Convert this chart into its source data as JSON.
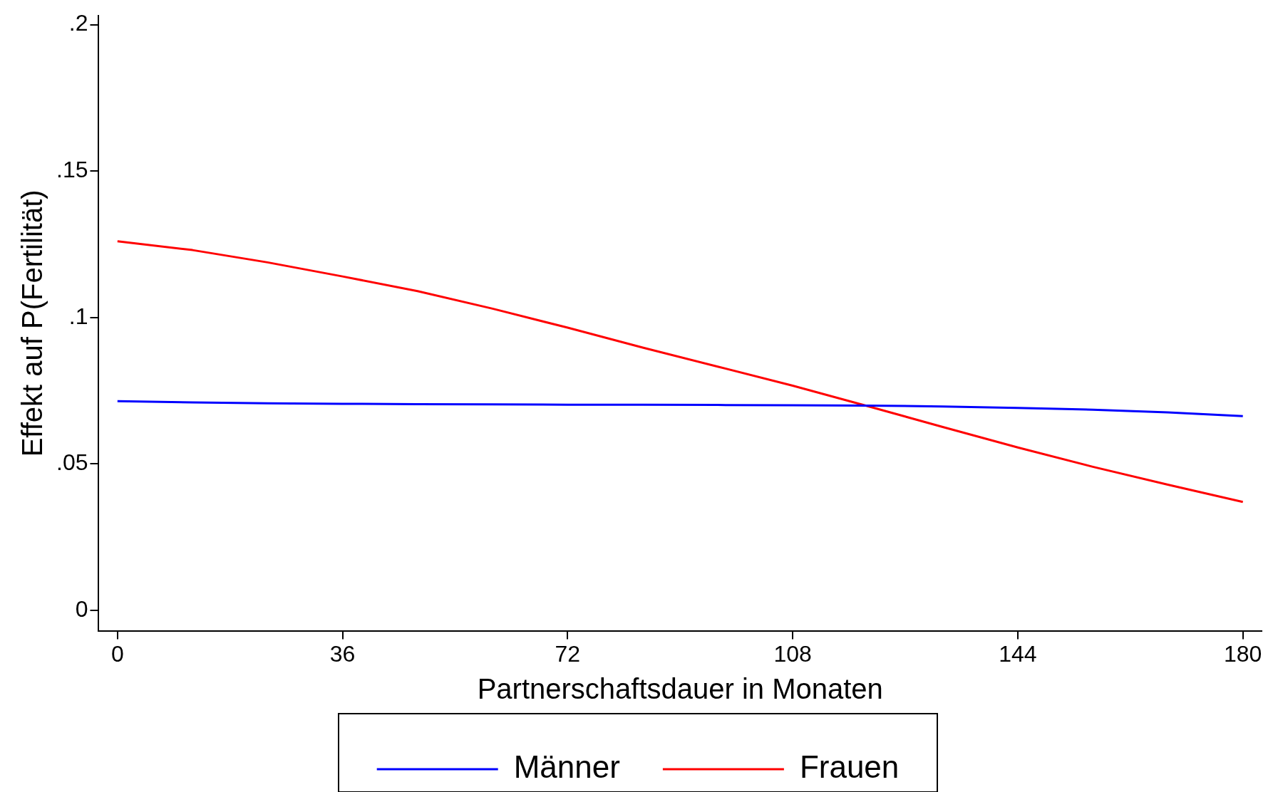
{
  "chart_data": {
    "type": "line",
    "xlabel": "Partnerschaftsdauer in Monaten",
    "ylabel": "Effekt auf P(Fertilität)",
    "x": [
      0,
      12,
      24,
      36,
      48,
      60,
      72,
      84,
      96,
      108,
      120,
      132,
      144,
      156,
      168,
      180
    ],
    "series": [
      {
        "name": "Männer",
        "color": "#0000ff",
        "values": [
          0.0714,
          0.071,
          0.0707,
          0.0705,
          0.0704,
          0.0703,
          0.0702,
          0.0702,
          0.0701,
          0.07,
          0.0699,
          0.0696,
          0.0691,
          0.0685,
          0.0676,
          0.0663
        ]
      },
      {
        "name": "Frauen",
        "color": "#ff0000",
        "values": [
          0.126,
          0.123,
          0.1188,
          0.114,
          0.109,
          0.103,
          0.0965,
          0.0897,
          0.0832,
          0.0767,
          0.0697,
          0.0626,
          0.0556,
          0.049,
          0.0429,
          0.037
        ]
      }
    ],
    "xlim": [
      -3,
      183
    ],
    "ylim": [
      -0.007,
      0.203
    ],
    "xticks": [
      0,
      36,
      72,
      108,
      144,
      180
    ],
    "yticks": [
      {
        "value": 0,
        "label": "0"
      },
      {
        "value": 0.05,
        "label": ".05"
      },
      {
        "value": 0.1,
        "label": ".1"
      },
      {
        "value": 0.15,
        "label": ".15"
      },
      {
        "value": 0.2,
        "label": ".2"
      }
    ],
    "grid": false,
    "legend": "bottom",
    "marker": "none",
    "line_style": "solid"
  }
}
